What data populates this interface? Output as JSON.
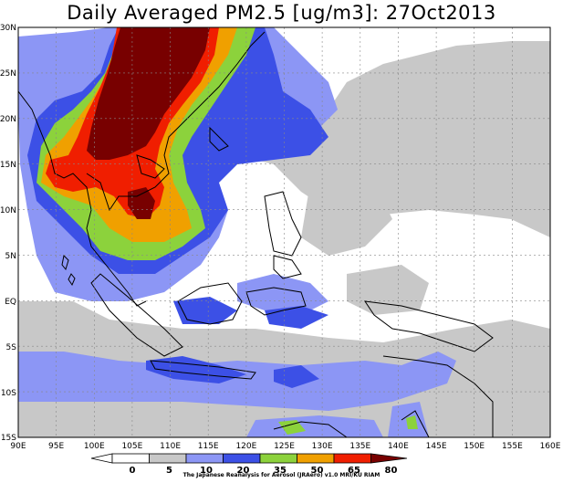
{
  "map": {
    "title": "Daily Averaged PM2.5 [ug/m3]: 27Oct2013",
    "lon_ticks": [
      "90E",
      "95E",
      "100E",
      "105E",
      "110E",
      "115E",
      "120E",
      "125E",
      "130E",
      "135E",
      "140E",
      "145E",
      "150E",
      "155E",
      "160E"
    ],
    "lat_ticks": [
      "30N",
      "25N",
      "20N",
      "15N",
      "10N",
      "5N",
      "EQ",
      "5S",
      "10S",
      "15S"
    ],
    "extent": {
      "lon_min": 90,
      "lon_max": 160,
      "lat_min": -15,
      "lat_max": 30
    },
    "colorbar": {
      "levels": [
        "0",
        "5",
        "10",
        "20",
        "35",
        "50",
        "65",
        "80"
      ],
      "colors": [
        "#ffffff",
        "#ffffff",
        "#c8c8c8",
        "#8c96f5",
        "#3c50e6",
        "#8cd23c",
        "#f0a000",
        "#f01e00",
        "#780000"
      ]
    },
    "credit": "The Japanese Reanalysis for Aerosol (JRAero) v1.0 MRI/KU RIAM"
  }
}
